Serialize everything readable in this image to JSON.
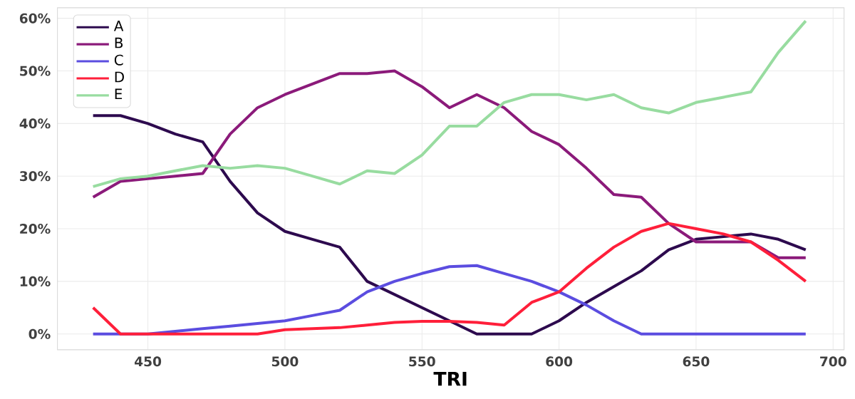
{
  "chart_data": {
    "type": "line",
    "xlabel": "TRI",
    "x": [
      430,
      440,
      450,
      460,
      470,
      480,
      490,
      500,
      510,
      520,
      530,
      540,
      550,
      560,
      570,
      580,
      590,
      600,
      610,
      620,
      630,
      640,
      650,
      660,
      670,
      680,
      690
    ],
    "series": [
      {
        "name": "A",
        "color": "#2d0a4e",
        "values": [
          41.5,
          41.5,
          40,
          38,
          36.5,
          29,
          23,
          19.5,
          18,
          16.5,
          10,
          7.5,
          5,
          2.5,
          0,
          0,
          0,
          2.5,
          6,
          9,
          12,
          16,
          18,
          18.5,
          19,
          18,
          16
        ]
      },
      {
        "name": "B",
        "color": "#8b1a7a",
        "values": [
          26,
          29,
          29.5,
          30,
          30.5,
          38,
          43,
          45.5,
          47.5,
          49.5,
          49.5,
          50,
          47,
          43,
          45.5,
          43,
          38.5,
          36,
          31.5,
          26.5,
          26,
          21,
          17.5,
          17.5,
          17.5,
          14.5,
          14.5
        ]
      },
      {
        "name": "C",
        "color": "#5b4de0",
        "values": [
          0,
          0,
          0,
          0.5,
          1,
          1.5,
          2,
          2.5,
          3.5,
          4.5,
          8,
          10,
          11.5,
          12.8,
          13,
          11.5,
          10,
          8,
          5.5,
          2.5,
          0,
          0,
          0,
          0,
          0,
          0,
          0
        ]
      },
      {
        "name": "D",
        "color": "#ff1f3a",
        "values": [
          5,
          0,
          0,
          0,
          0,
          0,
          0,
          0.8,
          1,
          1.2,
          1.7,
          2.2,
          2.4,
          2.4,
          2.2,
          1.7,
          6,
          8,
          12.5,
          16.5,
          19.5,
          21,
          20,
          19,
          17.5,
          14,
          10
        ]
      },
      {
        "name": "E",
        "color": "#98dca0",
        "values": [
          28,
          29.5,
          30,
          31,
          32,
          31.5,
          32,
          31.5,
          30,
          28.5,
          31,
          30.5,
          34,
          39.5,
          39.5,
          44,
          45.5,
          45.5,
          44.5,
          45.5,
          43,
          42,
          44,
          45,
          46,
          53.5,
          59.5
        ]
      }
    ],
    "xlim": [
      417,
      704
    ],
    "ylim": [
      -3,
      62
    ],
    "xticks": [
      450,
      500,
      550,
      600,
      650,
      700
    ],
    "yticks": [
      {
        "value": 0,
        "label": "0%"
      },
      {
        "value": 10,
        "label": "10%"
      },
      {
        "value": 20,
        "label": "20%"
      },
      {
        "value": 30,
        "label": "30%"
      },
      {
        "value": 40,
        "label": "40%"
      },
      {
        "value": 50,
        "label": "50%"
      },
      {
        "value": 60,
        "label": "60%"
      }
    ],
    "grid": true,
    "legend": "top left",
    "line_style": "solid",
    "marker": "none"
  }
}
